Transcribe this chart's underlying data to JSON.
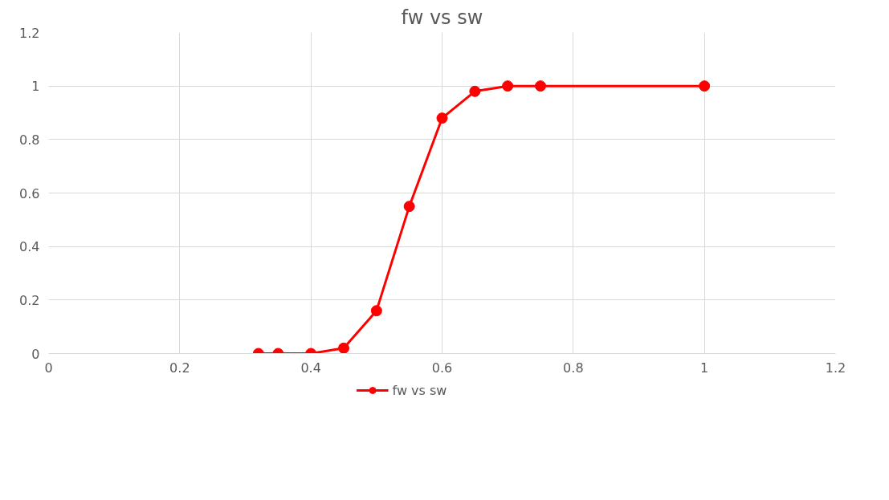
{
  "chart_data": {
    "type": "line",
    "title": "fw vs sw",
    "x": [
      0.32,
      0.35,
      0.4,
      0.45,
      0.5,
      0.55,
      0.6,
      0.65,
      0.7,
      0.75,
      1.0
    ],
    "series": [
      {
        "name": "fw vs sw",
        "color": "#ff0000",
        "values": [
          0,
          0,
          0,
          0.02,
          0.16,
          0.55,
          0.88,
          0.98,
          1,
          1,
          1
        ]
      }
    ],
    "xlim": [
      0,
      1.2
    ],
    "xticks": [
      0,
      0.2,
      0.4,
      0.6,
      0.8,
      1,
      1.2
    ],
    "ylim": [
      0,
      1.2
    ],
    "yticks": [
      0,
      0.2,
      0.4,
      0.6,
      0.8,
      1,
      1.2
    ],
    "grid": true,
    "legend": "bottom",
    "marker": "circle",
    "line_style": "solid"
  }
}
